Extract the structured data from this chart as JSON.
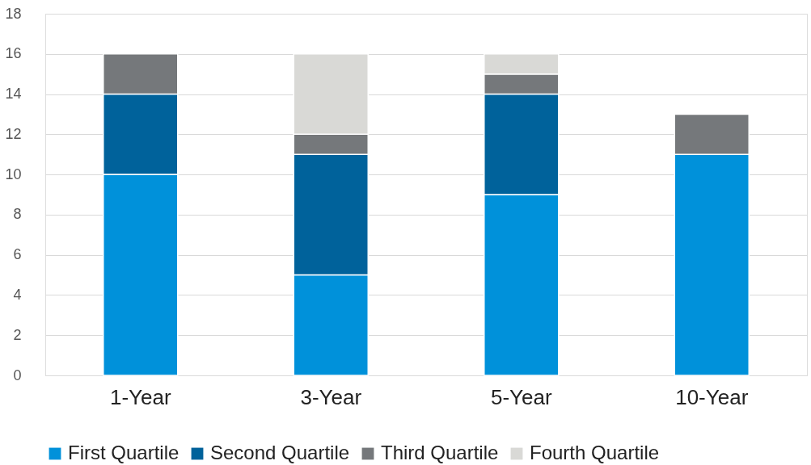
{
  "chart_data": {
    "type": "bar",
    "stacked": true,
    "categories": [
      "1-Year",
      "3-Year",
      "5-Year",
      "10-Year"
    ],
    "series": [
      {
        "name": "First Quartile",
        "color": "#0091da",
        "values": [
          10,
          5,
          9,
          11
        ]
      },
      {
        "name": "Second Quartile",
        "color": "#00629b",
        "values": [
          4,
          6,
          5,
          0
        ]
      },
      {
        "name": "Third Quartile",
        "color": "#75787b",
        "values": [
          2,
          1,
          1,
          2
        ]
      },
      {
        "name": "Fourth Quartile",
        "color": "#d9d9d6",
        "values": [
          0,
          4,
          1,
          0
        ]
      }
    ],
    "ylim": [
      0,
      18
    ],
    "yticks": [
      0,
      2,
      4,
      6,
      8,
      10,
      12,
      14,
      16,
      18
    ],
    "grid": "y",
    "legend": "bottom"
  }
}
